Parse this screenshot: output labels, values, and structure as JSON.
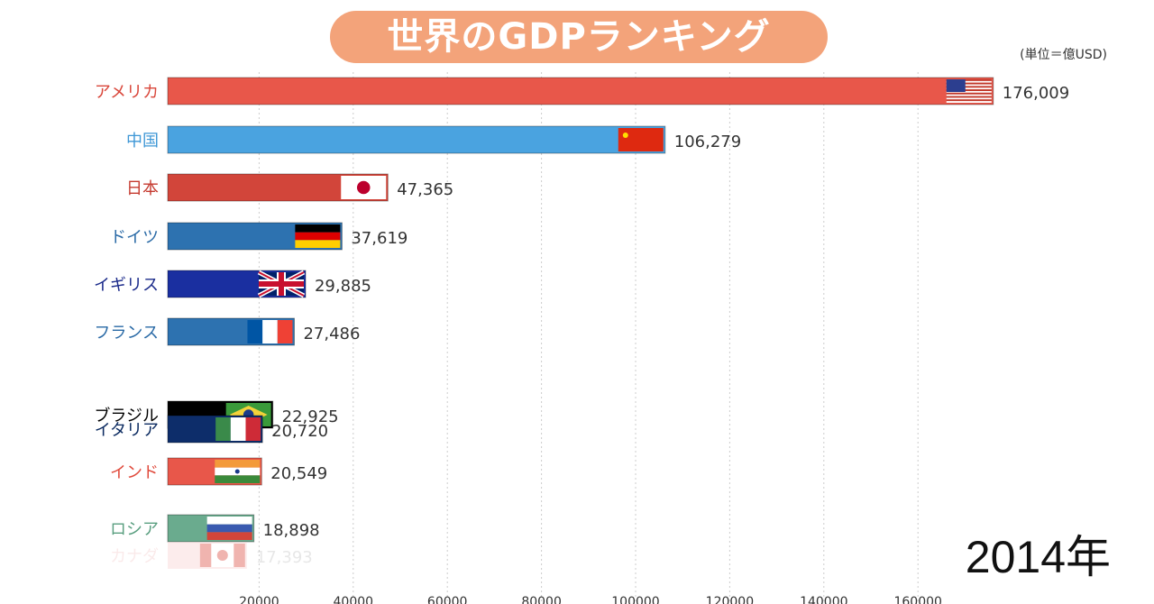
{
  "title": "世界のGDPランキング",
  "unit_label": "(単位＝億USD)",
  "year_label": "2014年",
  "chart_data": {
    "type": "bar",
    "orientation": "horizontal",
    "xlim": [
      0,
      176009
    ],
    "x_ticks": [
      20000,
      40000,
      60000,
      80000,
      100000,
      120000,
      140000,
      160000
    ],
    "x_tick_labels": [
      "20000",
      "40000",
      "60000",
      "80000",
      "100000",
      "120000",
      "140000",
      "160000"
    ],
    "grid": "vertical dotted",
    "categories": [
      "アメリカ",
      "中国",
      "日本",
      "ドイツ",
      "イギリス",
      "フランス",
      "ブラジル",
      "イタリア",
      "インド",
      "ロシア",
      "カナダ"
    ],
    "values": [
      176009,
      106279,
      47365,
      37619,
      29885,
      27486,
      22925,
      20720,
      20549,
      18898,
      17393
    ],
    "value_labels": [
      "176,009",
      "106,279",
      "47,365",
      "37,619",
      "29,885",
      "27,486",
      "22,925",
      "20,720",
      "20,549",
      "18,898",
      "17,393"
    ],
    "colors": [
      "#e8574a",
      "#4aa3e0",
      "#d2453a",
      "#2d72b0",
      "#1a2fa0",
      "#2d72b0",
      "#000000",
      "#0d2d6a",
      "#e8574a",
      "#6aab8e",
      "#f7c9c9"
    ],
    "label_colors": [
      "#d9463a",
      "#3e97d6",
      "#c53a2f",
      "#2a6aa6",
      "#1a2a8a",
      "#2a6aa6",
      "#000000",
      "#0b2a60",
      "#e04a3c",
      "#5a9f80",
      "#f3c4c4"
    ],
    "flags": [
      "us",
      "cn",
      "jp",
      "de",
      "gb",
      "fr",
      "br",
      "it",
      "in",
      "ru",
      "ca"
    ]
  }
}
